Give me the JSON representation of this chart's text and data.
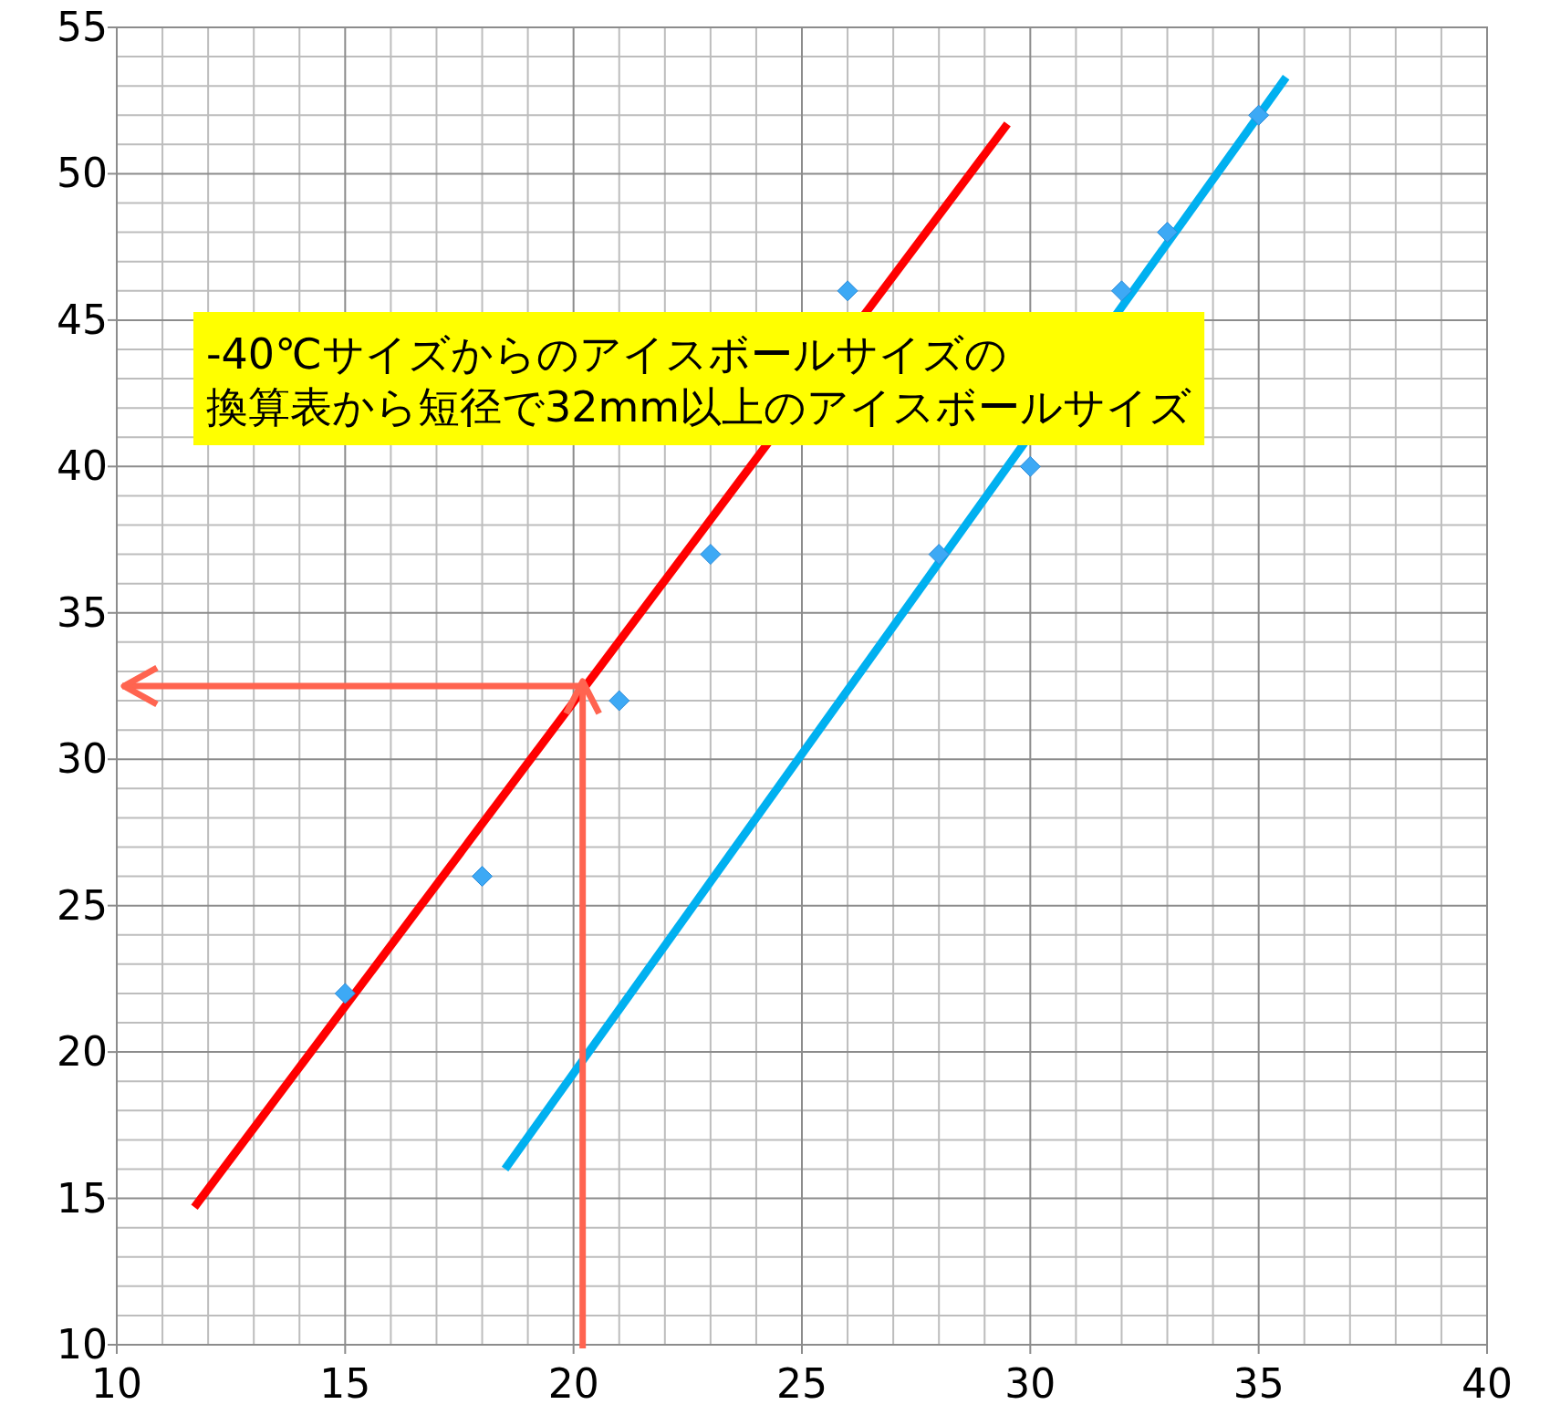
{
  "chart_data": {
    "type": "scatter",
    "xlim": [
      10,
      40
    ],
    "ylim": [
      10,
      55
    ],
    "xticks": [
      10,
      15,
      20,
      25,
      30,
      35,
      40
    ],
    "yticks": [
      10,
      15,
      20,
      25,
      30,
      35,
      40,
      45,
      50,
      55
    ],
    "grid": true,
    "series": [
      {
        "marker": "diamond",
        "color": "#3da9f5",
        "x": [
          15,
          18,
          21,
          23,
          26,
          28,
          30,
          32,
          33,
          35
        ],
        "values": [
          22,
          26,
          32,
          37,
          46,
          37,
          40,
          46,
          48,
          52
        ]
      },
      {
        "type": "line",
        "color": "#ff0000",
        "x": [
          11.7,
          29.5
        ],
        "values": [
          14.7,
          51.7
        ]
      },
      {
        "type": "line",
        "color": "#00b0f0",
        "x": [
          18.5,
          35.6
        ],
        "values": [
          16,
          53.3
        ]
      }
    ],
    "annotations": [
      "-40℃サイズからのアイスボールサイズの",
      "換算表から短径で32mm以上のアイスボールサイズ"
    ]
  }
}
